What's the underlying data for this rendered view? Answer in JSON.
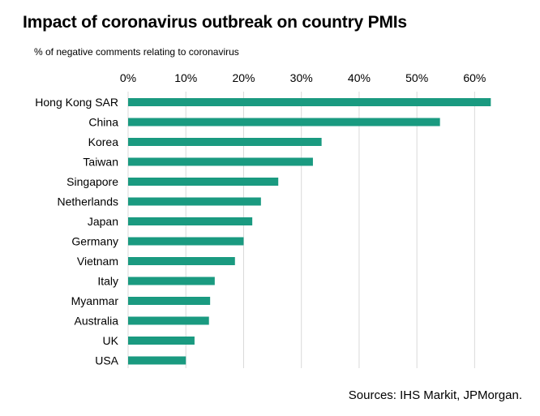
{
  "chart_data": {
    "type": "bar",
    "orientation": "horizontal",
    "title": "Impact of coronavirus outbreak on country PMIs",
    "subtitle": "% of negative comments relating to coronavirus",
    "xlim": [
      0,
      65
    ],
    "xticks": [
      0,
      10,
      20,
      30,
      40,
      50,
      60
    ],
    "xtick_labels": [
      "0%",
      "10%",
      "20%",
      "30%",
      "40%",
      "50%",
      "60%"
    ],
    "x_axis_position": "top",
    "grid": true,
    "bar_color": "#1a9a80",
    "categories": [
      "Hong Kong SAR",
      "China",
      "Korea",
      "Taiwan",
      "Singapore",
      "Netherlands",
      "Japan",
      "Germany",
      "Vietnam",
      "Italy",
      "Myanmar",
      "Australia",
      "UK",
      "USA"
    ],
    "values": [
      62.8,
      54.0,
      33.5,
      32.0,
      26.0,
      23.0,
      21.5,
      20.0,
      18.5,
      15.0,
      14.2,
      14.0,
      11.5,
      10.0
    ]
  },
  "source": "Sources: IHS Markit, JPMorgan."
}
